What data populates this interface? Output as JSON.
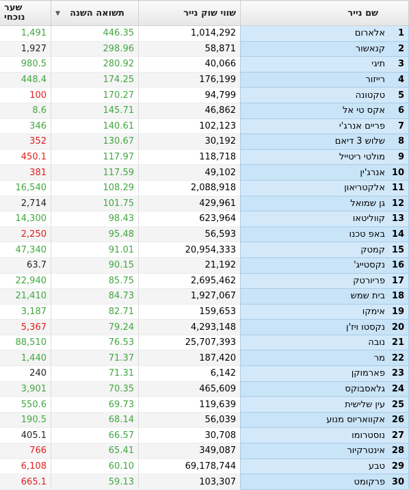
{
  "table": {
    "header": {
      "name": "שם נייר",
      "market_cap": "שווי שוק נייר",
      "return": "תשואה השנה",
      "price": [
        "שער",
        "נוכחי"
      ]
    },
    "rows": [
      {
        "rank": "1",
        "name": "אלארום",
        "market_cap": "1,014,292",
        "return": "446.35",
        "price": "1,491",
        "price_color": "#41a641"
      },
      {
        "rank": "2",
        "name": "קנאשור",
        "market_cap": "58,871",
        "return": "298.96",
        "price": "1,927",
        "price_color": "#222222"
      },
      {
        "rank": "3",
        "name": "תיגי",
        "market_cap": "40,066",
        "return": "280.92",
        "price": "980.5",
        "price_color": "#41a641"
      },
      {
        "rank": "4",
        "name": "רייזור",
        "market_cap": "176,199",
        "return": "174.25",
        "price": "448.4",
        "price_color": "#41a641"
      },
      {
        "rank": "5",
        "name": "טקטונה",
        "market_cap": "94,799",
        "return": "170.27",
        "price": "100",
        "price_color": "#e0201c"
      },
      {
        "rank": "6",
        "name": "אקס טי אל",
        "market_cap": "46,862",
        "return": "145.71",
        "price": "8.6",
        "price_color": "#41a641"
      },
      {
        "rank": "7",
        "name": "פריים אנרג'י",
        "market_cap": "102,123",
        "return": "140.61",
        "price": "346",
        "price_color": "#41a641"
      },
      {
        "rank": "8",
        "name": "שלוש 3 דיאם",
        "market_cap": "30,192",
        "return": "130.67",
        "price": "352",
        "price_color": "#e0201c"
      },
      {
        "rank": "9",
        "name": "מולטי ריטייל",
        "market_cap": "118,718",
        "return": "117.97",
        "price": "450.1",
        "price_color": "#e0201c"
      },
      {
        "rank": "10",
        "name": "אנרג'ין",
        "market_cap": "49,102",
        "return": "117.59",
        "price": "381",
        "price_color": "#e0201c"
      },
      {
        "rank": "11",
        "name": "אלקטריאון",
        "market_cap": "2,088,918",
        "return": "108.29",
        "price": "16,540",
        "price_color": "#41a641"
      },
      {
        "rank": "12",
        "name": "גן שמואל",
        "market_cap": "429,961",
        "return": "101.75",
        "price": "2,714",
        "price_color": "#222222"
      },
      {
        "rank": "13",
        "name": "קווליטאו",
        "market_cap": "623,964",
        "return": "98.43",
        "price": "14,300",
        "price_color": "#41a641"
      },
      {
        "rank": "14",
        "name": "באפ טכנו",
        "market_cap": "56,593",
        "return": "95.48",
        "price": "2,250",
        "price_color": "#e0201c"
      },
      {
        "rank": "15",
        "name": "קמטק",
        "market_cap": "20,954,333",
        "return": "91.01",
        "price": "47,340",
        "price_color": "#41a641"
      },
      {
        "rank": "16",
        "name": "נקסטייג'",
        "market_cap": "21,192",
        "return": "90.15",
        "price": "63.7",
        "price_color": "#222222"
      },
      {
        "rank": "17",
        "name": "פריורטק",
        "market_cap": "2,695,462",
        "return": "85.75",
        "price": "22,940",
        "price_color": "#41a641"
      },
      {
        "rank": "18",
        "name": "בית שמש",
        "market_cap": "1,927,067",
        "return": "84.73",
        "price": "21,410",
        "price_color": "#41a641"
      },
      {
        "rank": "19",
        "name": "אימקו",
        "market_cap": "159,653",
        "return": "82.71",
        "price": "3,187",
        "price_color": "#41a641"
      },
      {
        "rank": "20",
        "name": "נקסטו ויז'ן",
        "market_cap": "4,293,148",
        "return": "79.24",
        "price": "5,367",
        "price_color": "#e0201c"
      },
      {
        "rank": "21",
        "name": "נובה",
        "market_cap": "25,707,393",
        "return": "76.53",
        "price": "88,510",
        "price_color": "#41a641"
      },
      {
        "rank": "22",
        "name": "מר",
        "market_cap": "187,420",
        "return": "71.37",
        "price": "1,440",
        "price_color": "#41a641"
      },
      {
        "rank": "23",
        "name": "פארמוקן",
        "market_cap": "6,142",
        "return": "71.31",
        "price": "240",
        "price_color": "#222222"
      },
      {
        "rank": "24",
        "name": "גלאסבוקס",
        "market_cap": "465,609",
        "return": "70.35",
        "price": "3,901",
        "price_color": "#41a641"
      },
      {
        "rank": "25",
        "name": "עין שלישית",
        "market_cap": "119,639",
        "return": "69.73",
        "price": "550.6",
        "price_color": "#41a641"
      },
      {
        "rank": "26",
        "name": "אקוואריוס מנוע",
        "market_cap": "56,039",
        "return": "68.14",
        "price": "190.5",
        "price_color": "#41a641"
      },
      {
        "rank": "27",
        "name": "נוסטרומו",
        "market_cap": "30,708",
        "return": "66.57",
        "price": "405.1",
        "price_color": "#222222"
      },
      {
        "rank": "28",
        "name": "אינטרקיור",
        "market_cap": "349,087",
        "return": "65.41",
        "price": "766",
        "price_color": "#e0201c"
      },
      {
        "rank": "29",
        "name": "טבע",
        "market_cap": "69,178,744",
        "return": "60.10",
        "price": "6,108",
        "price_color": "#e0201c"
      },
      {
        "rank": "30",
        "name": "פרקומט",
        "market_cap": "103,307",
        "return": "59.13",
        "price": "665.1",
        "price_color": "#e0201c"
      }
    ],
    "return_color": "#41a641"
  }
}
